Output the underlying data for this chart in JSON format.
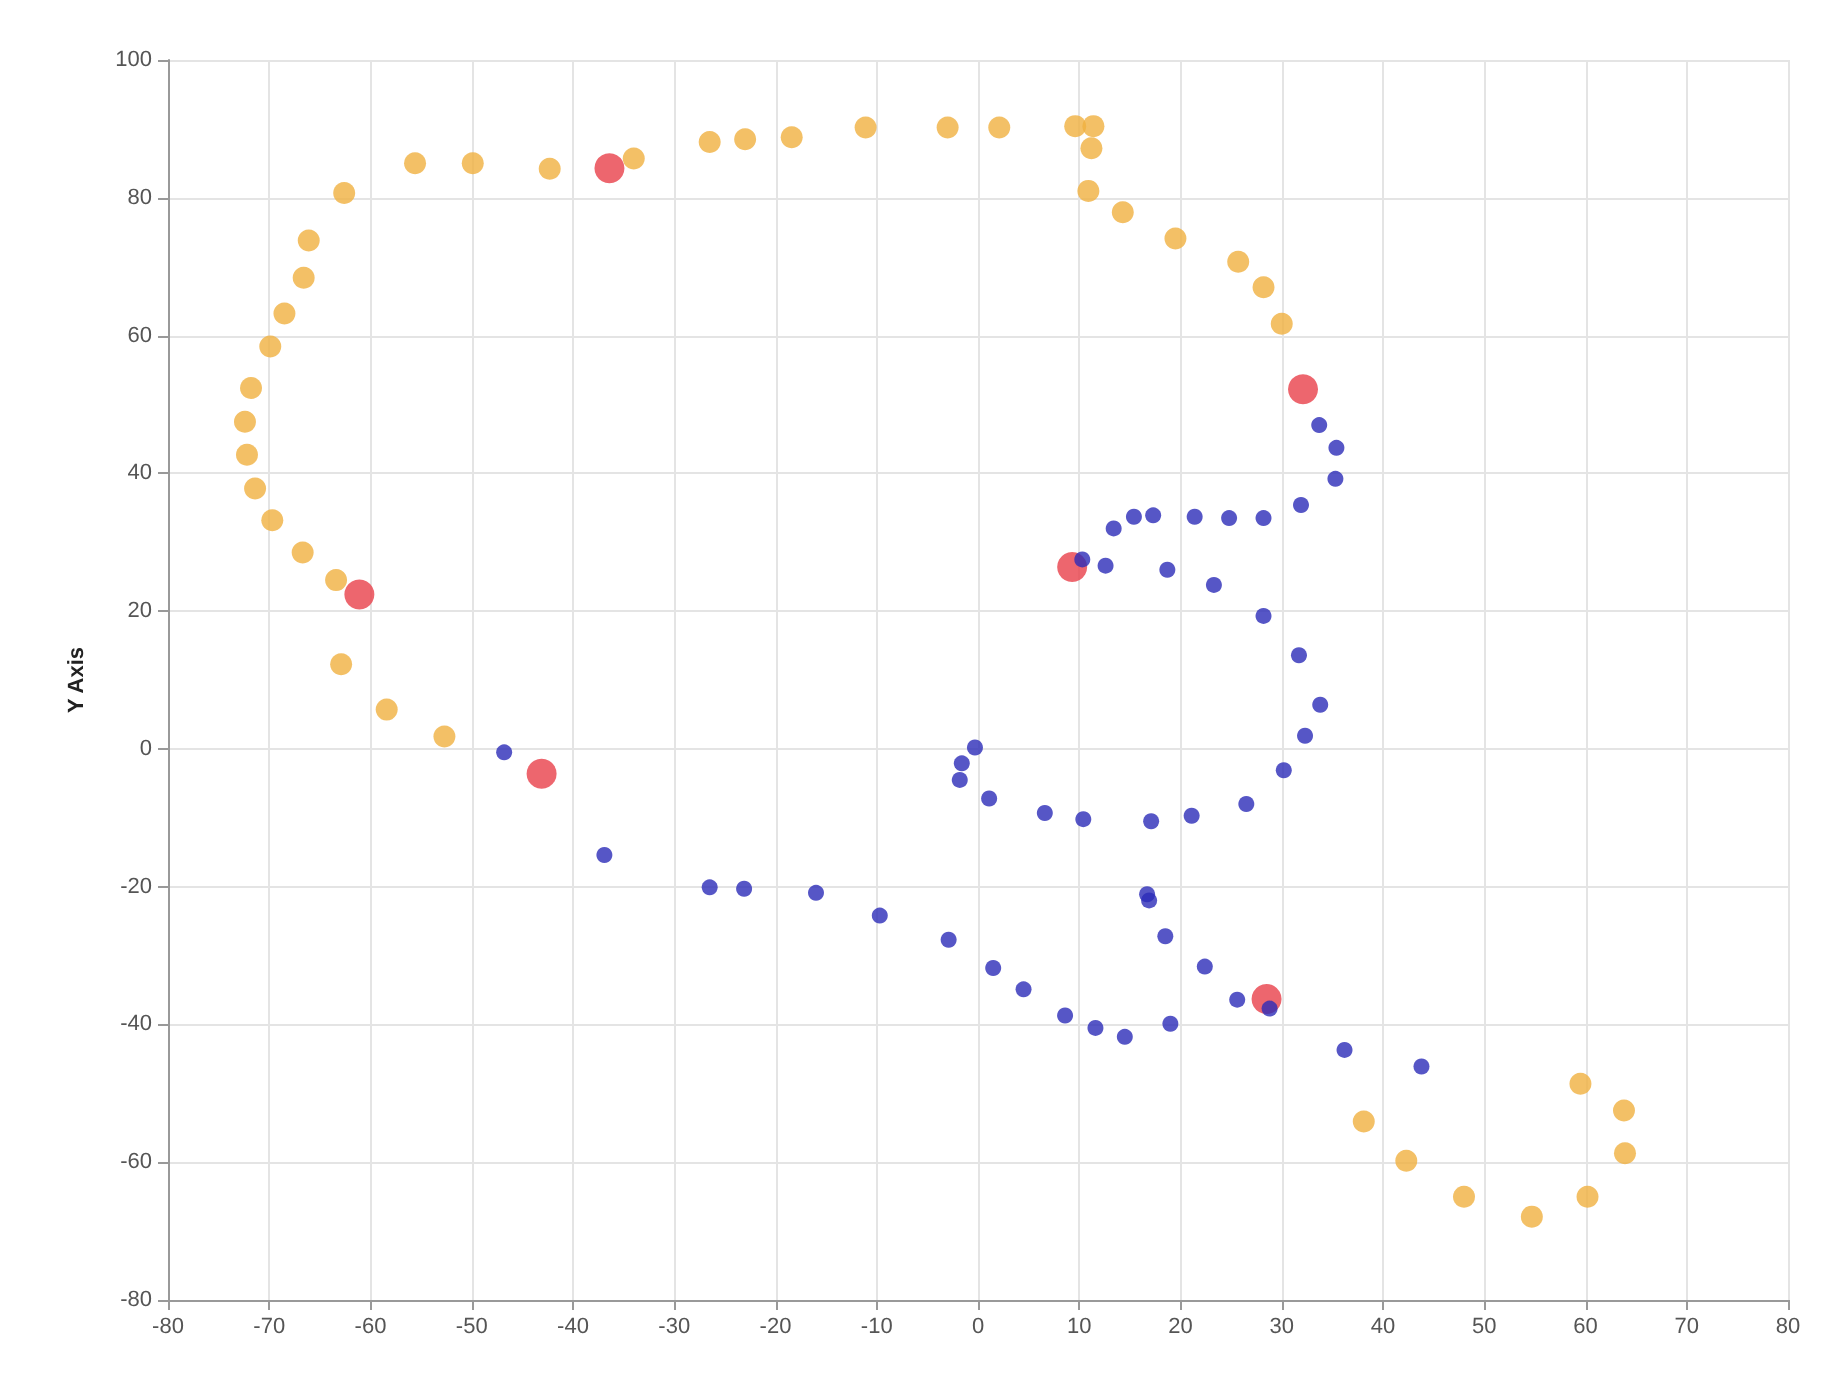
{
  "chart_data": {
    "type": "scatter",
    "ylabel": "Y Axis",
    "xlim": [
      -80,
      80
    ],
    "ylim": [
      -80,
      100
    ],
    "xticks": [
      -80,
      -70,
      -60,
      -50,
      -40,
      -30,
      -20,
      -10,
      0,
      10,
      20,
      30,
      40,
      50,
      60,
      70,
      80
    ],
    "yticks": [
      -80,
      -60,
      -40,
      -20,
      0,
      20,
      40,
      60,
      80,
      100
    ],
    "grid": true,
    "marker": "circle",
    "series": [
      {
        "color": "#e8404a",
        "x": [
          -36.4,
          -61.1,
          -43.1,
          32.1,
          9.3,
          28.5
        ],
        "values": [
          84.3,
          22.4,
          -3.6,
          52.2,
          26.4,
          -36.3
        ]
      },
      {
        "color": "#f0b040",
        "x": [
          -62.6,
          -66.1,
          -66.6,
          -68.5,
          -69.9,
          -71.8,
          -72.4,
          -72.2,
          -71.4,
          -69.7,
          -66.7,
          -63.4,
          -62.9,
          -58.4,
          -52.7,
          -55.6,
          -49.9,
          -42.3,
          -34.0,
          -26.5,
          -23.0,
          -18.4,
          -11.1,
          -3.0,
          2.1,
          9.6,
          11.4,
          11.2,
          10.9,
          14.3,
          19.5,
          25.7,
          28.2,
          30.0,
          38.1,
          42.3,
          48.0,
          54.7,
          60.2,
          63.9,
          63.8,
          59.5
        ],
        "values": [
          80.7,
          73.8,
          68.4,
          63.2,
          58.4,
          52.4,
          47.5,
          42.7,
          37.8,
          33.2,
          28.5,
          24.5,
          12.3,
          5.7,
          1.8,
          85.0,
          85.0,
          84.2,
          85.7,
          88.1,
          88.5,
          88.8,
          90.2,
          90.2,
          90.2,
          90.4,
          90.4,
          87.2,
          81.0,
          77.9,
          74.1,
          70.7,
          67.0,
          61.7,
          -54.1,
          -59.8,
          -65.0,
          -67.9,
          -65.0,
          -58.7,
          -52.5,
          -48.6
        ]
      },
      {
        "color": "#2c2cb8",
        "x": [
          -46.8,
          -36.9,
          -26.5,
          -23.1,
          -16.0,
          -9.7,
          -2.9,
          1.5,
          4.5,
          8.6,
          11.6,
          14.5,
          19.0,
          25.6,
          28.8,
          36.2,
          43.8,
          22.4,
          18.5,
          16.9,
          16.7,
          -0.3,
          -1.6,
          -1.8,
          1.1,
          6.6,
          10.4,
          17.1,
          21.1,
          26.5,
          30.2,
          32.3,
          33.8,
          33.7,
          35.4,
          35.3,
          31.9,
          28.2,
          24.8,
          21.4,
          17.3,
          15.4,
          13.4,
          10.3,
          12.6,
          18.7,
          23.3,
          28.2,
          31.7
        ],
        "values": [
          -0.5,
          -15.4,
          -20.1,
          -20.3,
          -20.9,
          -24.2,
          -27.7,
          -31.8,
          -34.9,
          -38.7,
          -40.5,
          -41.8,
          -39.9,
          -36.4,
          -37.7,
          -43.7,
          -46.1,
          -31.6,
          -27.2,
          -22.0,
          -21.1,
          0.2,
          -2.1,
          -4.5,
          -7.2,
          -9.3,
          -10.2,
          -10.5,
          -9.7,
          -8.0,
          -3.1,
          1.9,
          6.4,
          47.0,
          43.7,
          39.2,
          35.4,
          33.5,
          33.5,
          33.7,
          33.9,
          33.7,
          32.0,
          27.5,
          26.6,
          26.0,
          23.8,
          19.3,
          13.6
        ]
      }
    ]
  }
}
